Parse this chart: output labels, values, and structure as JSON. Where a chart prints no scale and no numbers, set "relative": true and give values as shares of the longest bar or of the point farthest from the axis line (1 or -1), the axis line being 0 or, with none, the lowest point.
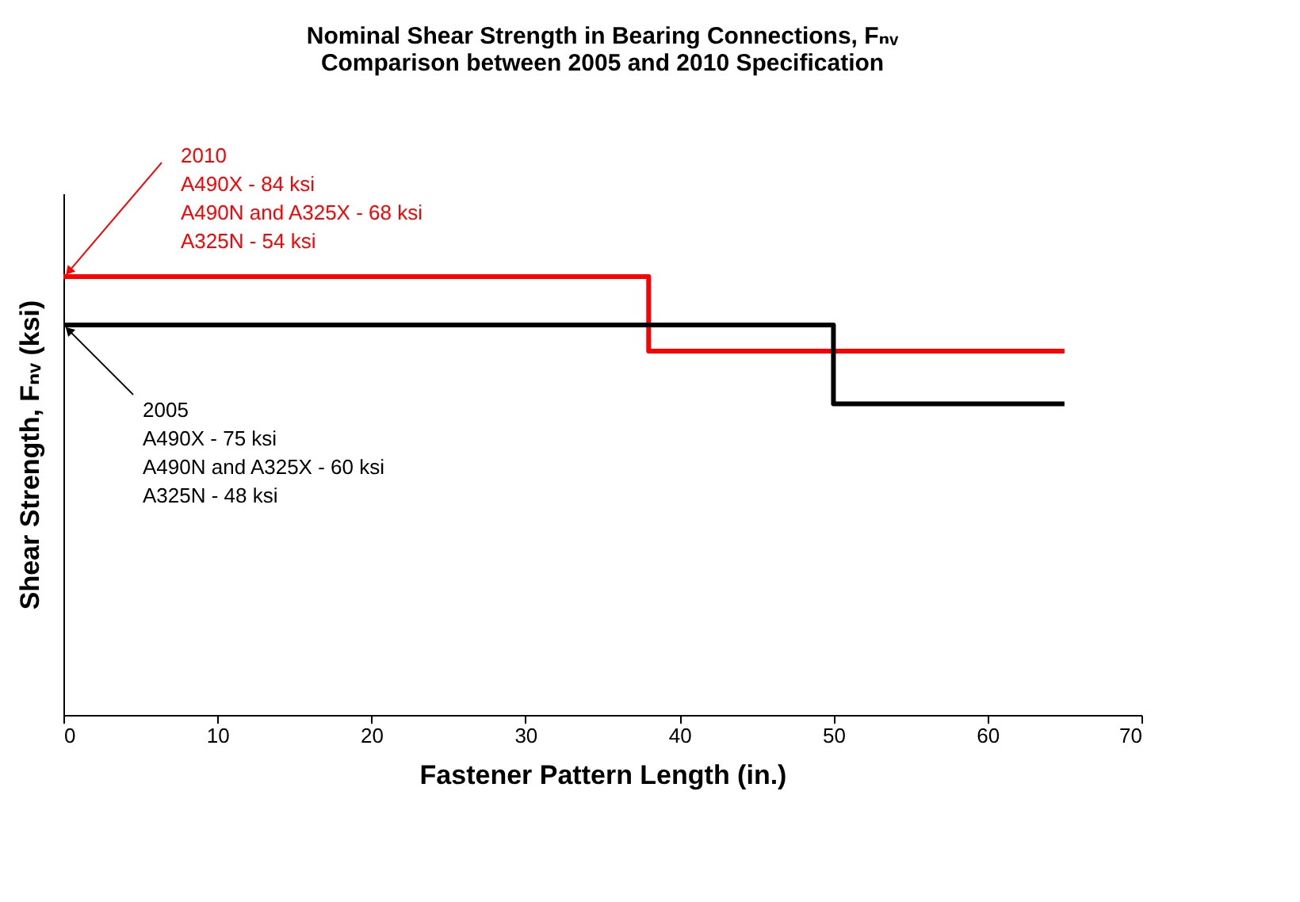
{
  "chart_data": {
    "type": "step",
    "title": [
      "Nominal Shear Strength in Bearing Connections, Fₙᵥ",
      "Comparison between 2005 and 2010 Specification"
    ],
    "xlabel": "Fastener Pattern Length (in.)",
    "ylabel": "Shear Strength, Fₙᵥ (ksi)",
    "relative": true,
    "xlim": [
      0,
      70
    ],
    "xticks": [
      0,
      10,
      20,
      30,
      40,
      50,
      60,
      70
    ],
    "grid": false,
    "series": [
      {
        "color": "#ff0000",
        "x": [
          0,
          38,
          65
        ],
        "values": [
          1,
          0.83,
          0.83
        ]
      },
      {
        "color": "#000000",
        "x": [
          0,
          50,
          65
        ],
        "values": [
          0.89,
          0.71,
          0.71
        ]
      }
    ],
    "annotations": [
      {
        "text": "2010\nA490X - 84 ksi\nA490N and A325X - 68 ksi\nA325N - 54 ksi",
        "x": 0,
        "y": 1
      },
      {
        "text": "2005\nA490X - 75 ksi\nA490N and A325X - 60 ksi\nA325N - 48 ksi",
        "x": 0,
        "y": 0.89
      }
    ]
  }
}
